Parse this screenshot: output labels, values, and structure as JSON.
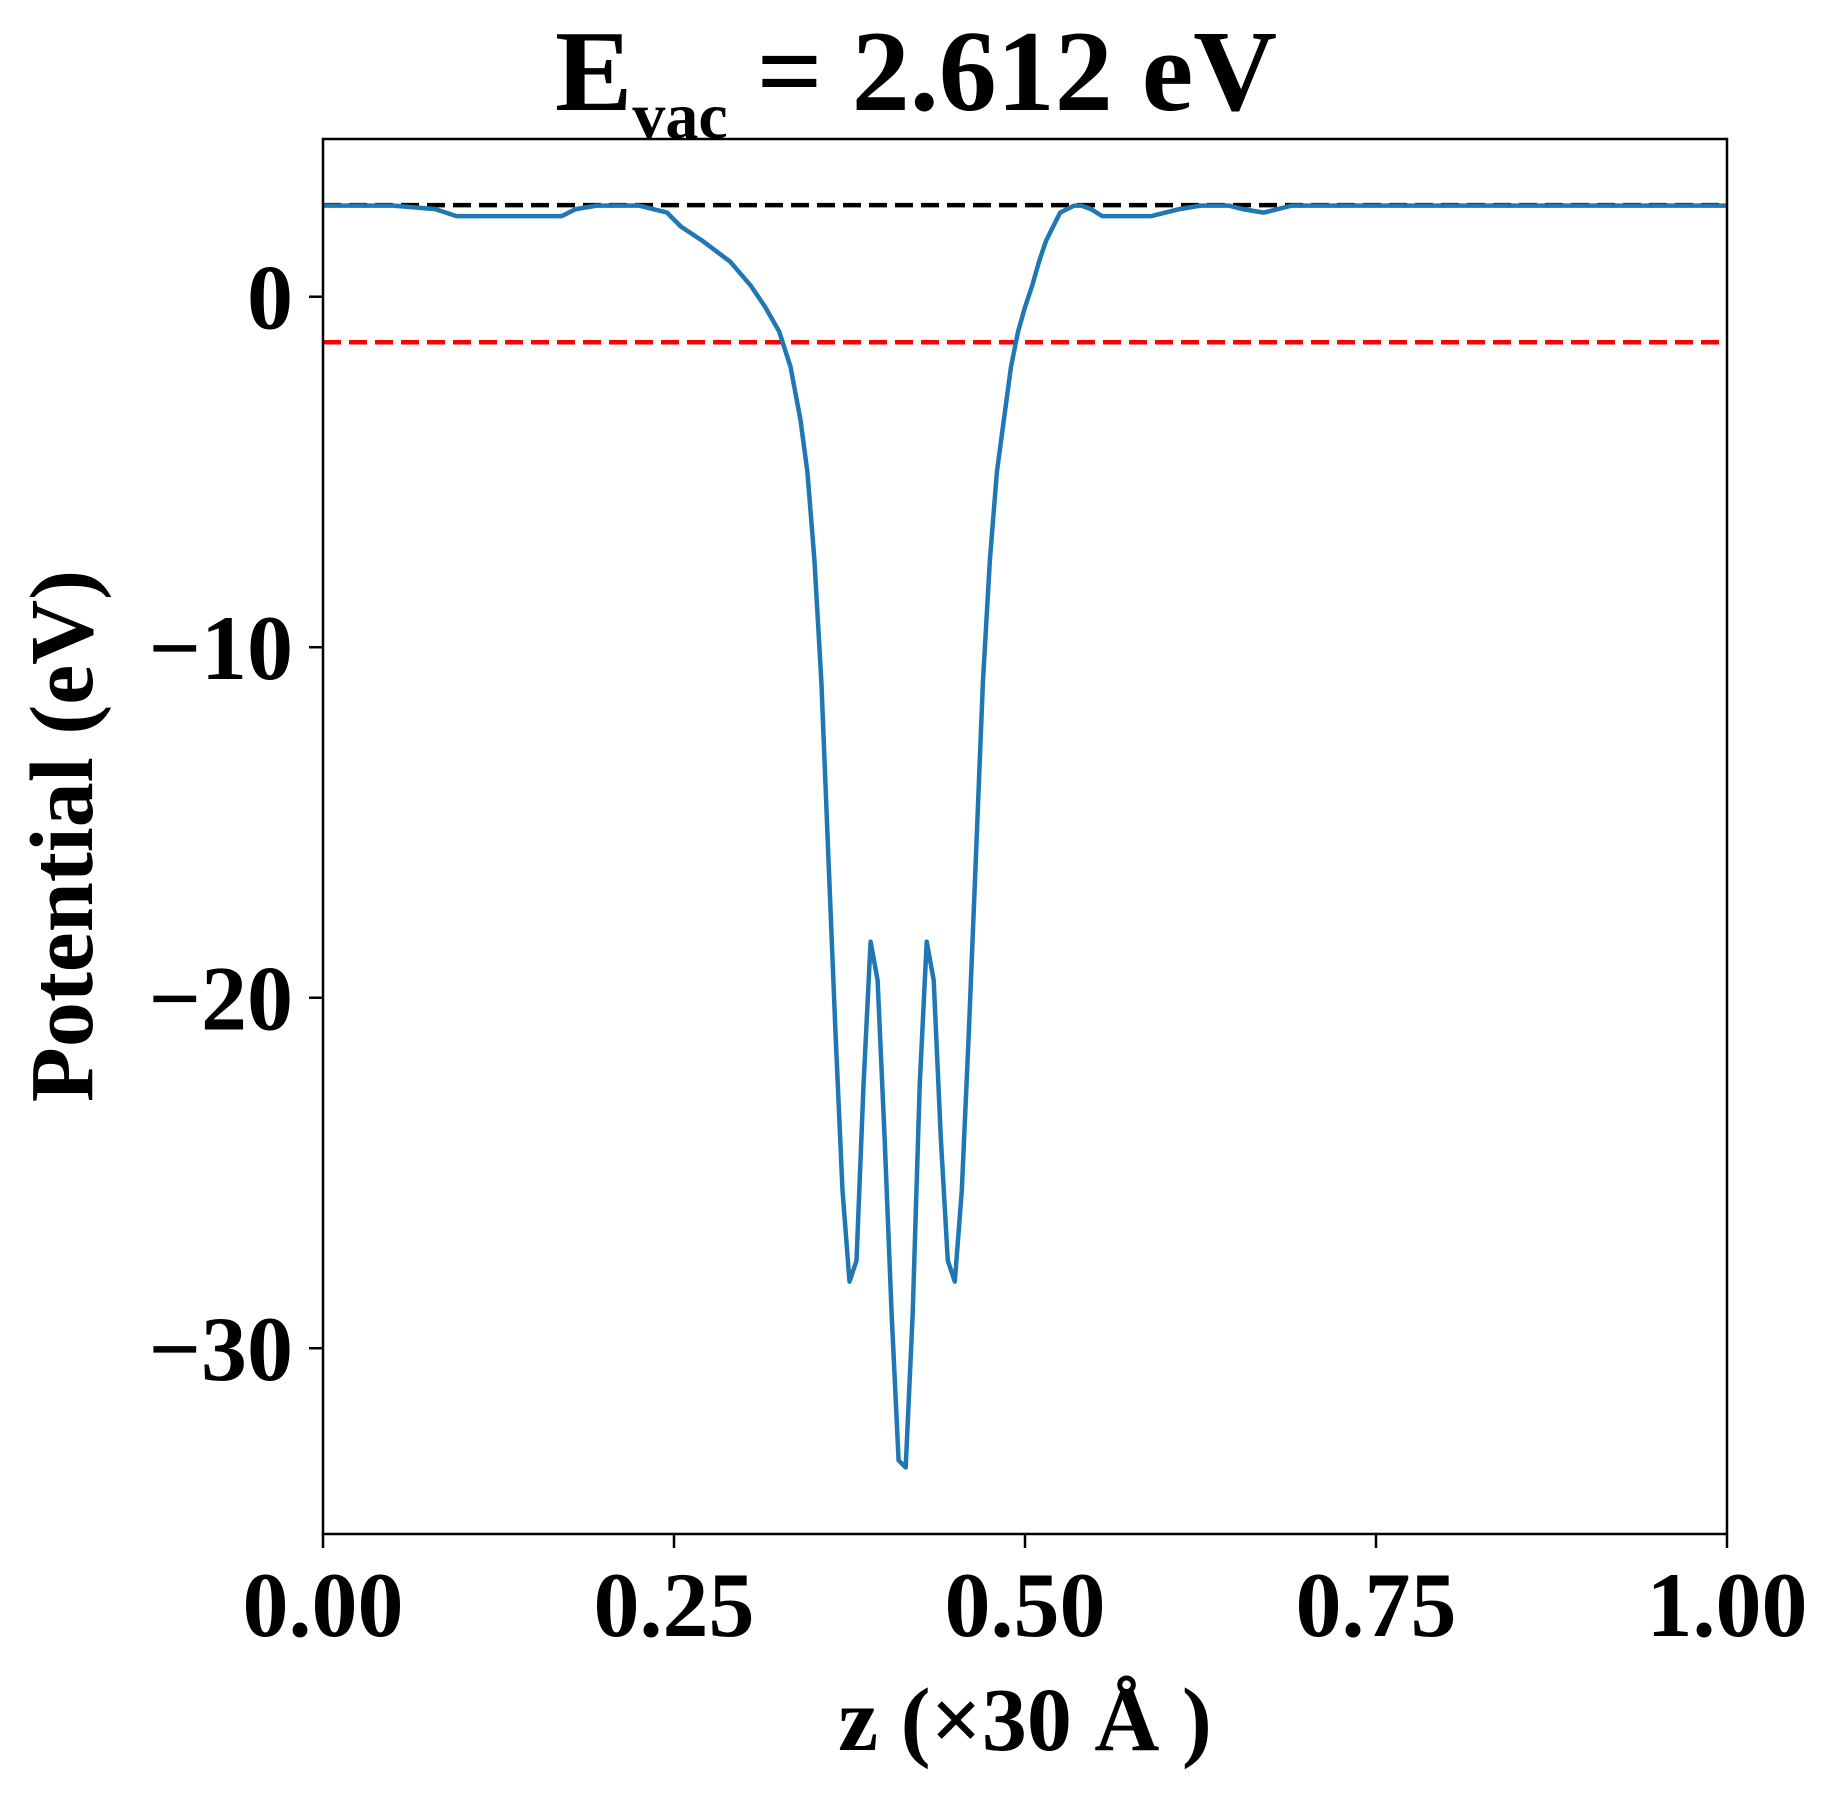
{
  "chart_data": {
    "type": "line",
    "title": {
      "main": "E",
      "subscript": "vac",
      "rest": " = 2.612 eV"
    },
    "xlabel": "z (×30 Å )",
    "ylabel": "Potential (eV)",
    "xlim": [
      0.0,
      1.0
    ],
    "ylim": [
      -35.3,
      4.5
    ],
    "xticks": [
      0.0,
      0.25,
      0.5,
      0.75,
      1.0
    ],
    "xtick_labels": [
      "0.00",
      "0.25",
      "0.50",
      "0.75",
      "1.00"
    ],
    "yticks": [
      0,
      -10,
      -20,
      -30
    ],
    "ytick_labels": [
      "0",
      "−10",
      "−20",
      "−30"
    ],
    "grid": false,
    "legend": "none",
    "hlines": [
      {
        "y": 2.612,
        "color": "#000000",
        "style": "dashed"
      },
      {
        "y": -1.3,
        "color": "#ff0000",
        "style": "dashed"
      }
    ],
    "series": [
      {
        "color": "#1f77b4",
        "x": [
          0.0,
          0.05,
          0.08,
          0.095,
          0.11,
          0.15,
          0.17,
          0.18,
          0.195,
          0.21,
          0.225,
          0.235,
          0.245,
          0.255,
          0.27,
          0.29,
          0.305,
          0.315,
          0.325,
          0.333,
          0.34,
          0.345,
          0.35,
          0.355,
          0.36,
          0.365,
          0.37,
          0.375,
          0.38,
          0.385,
          0.39,
          0.395,
          0.4,
          0.405,
          0.41,
          0.415,
          0.42,
          0.425,
          0.43,
          0.435,
          0.44,
          0.445,
          0.45,
          0.455,
          0.46,
          0.465,
          0.47,
          0.475,
          0.48,
          0.485,
          0.49,
          0.495,
          0.5,
          0.505,
          0.51,
          0.515,
          0.52,
          0.525,
          0.53,
          0.535,
          0.54,
          0.547,
          0.555,
          0.565,
          0.575,
          0.59,
          0.61,
          0.625,
          0.635,
          0.645,
          0.655,
          0.67,
          0.69,
          0.705,
          0.715,
          0.73,
          0.76,
          0.78,
          0.79,
          0.8,
          0.85,
          0.9,
          0.95,
          1.0
        ],
        "y": [
          2.6,
          2.6,
          2.5,
          2.3,
          2.3,
          2.3,
          2.3,
          2.5,
          2.6,
          2.6,
          2.6,
          2.5,
          2.4,
          2.0,
          1.6,
          1.0,
          0.3,
          -0.3,
          -1.0,
          -2.0,
          -3.5,
          -5.0,
          -7.5,
          -11.0,
          -16.0,
          -21.0,
          -25.5,
          -28.1,
          -27.5,
          -22.5,
          -18.4,
          -19.5,
          -24.0,
          -29.0,
          -33.2,
          -33.4,
          -29.0,
          -22.5,
          -18.4,
          -19.5,
          -24.0,
          -27.5,
          -28.1,
          -25.5,
          -21.0,
          -16.0,
          -11.0,
          -7.5,
          -5.0,
          -3.5,
          -2.0,
          -1.0,
          -0.3,
          0.3,
          1.0,
          1.6,
          2.0,
          2.4,
          2.5,
          2.6,
          2.6,
          2.5,
          2.3,
          2.3,
          2.3,
          2.3,
          2.5,
          2.6,
          2.6,
          2.6,
          2.5,
          2.4,
          2.6,
          2.6,
          2.6,
          2.6,
          2.6,
          2.6,
          2.6,
          2.6,
          2.6,
          2.6,
          2.6,
          2.6
        ]
      }
    ]
  }
}
